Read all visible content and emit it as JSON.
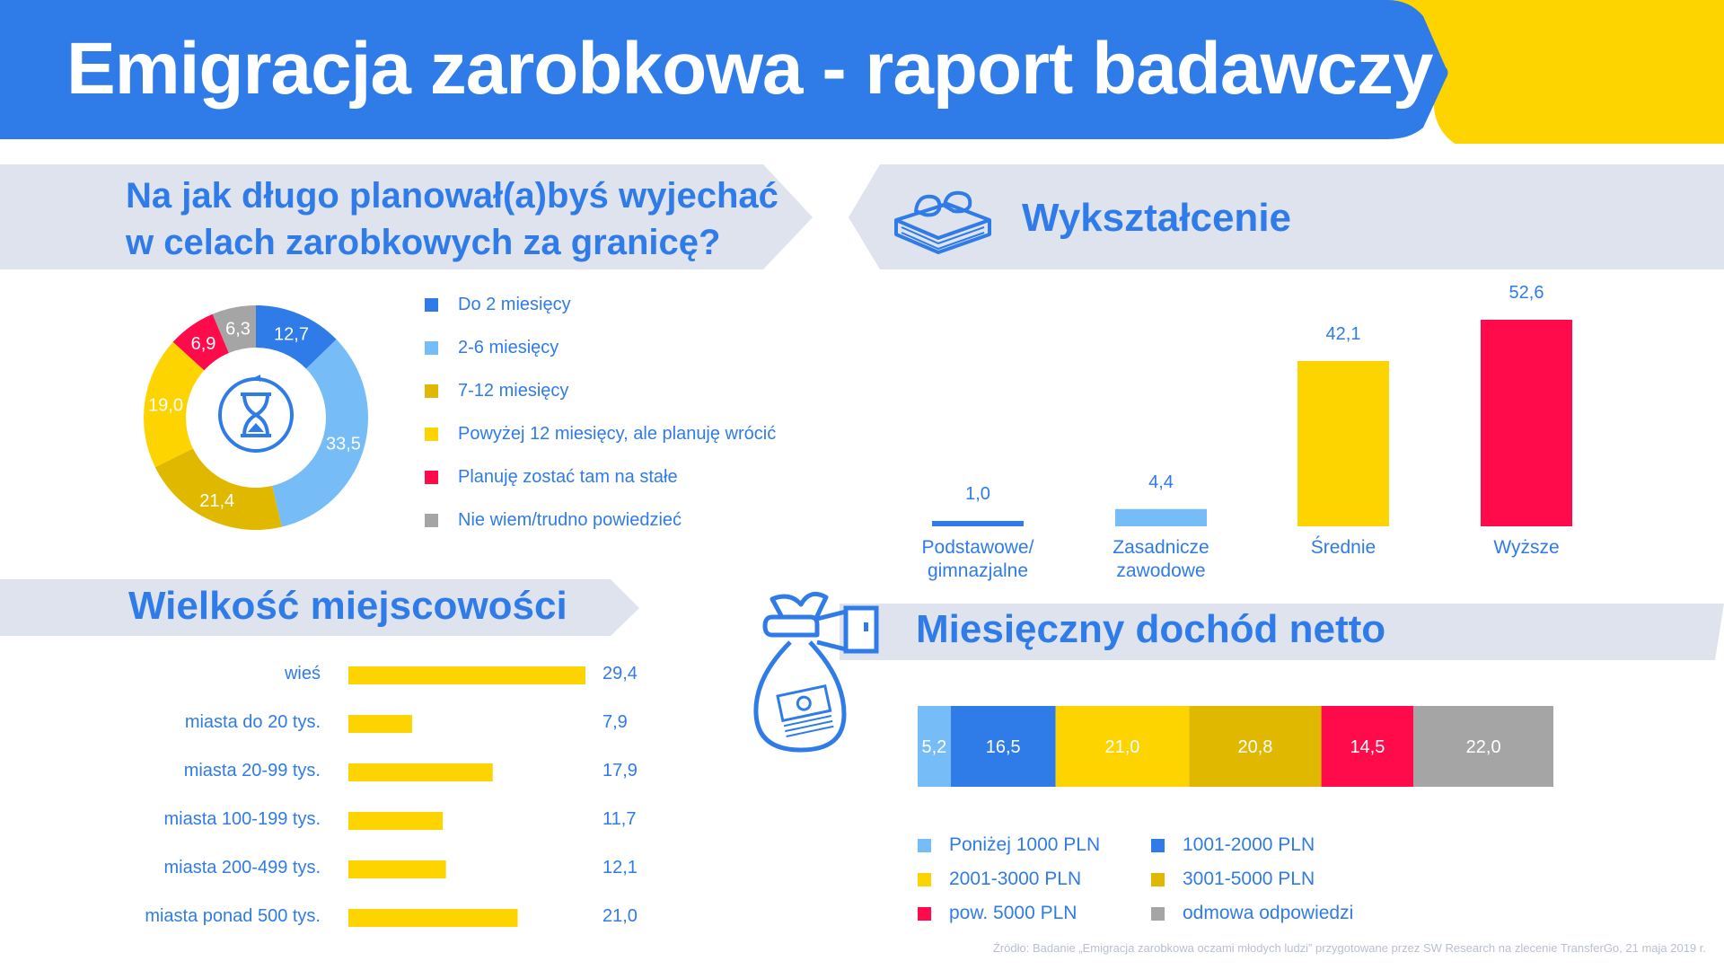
{
  "header": {
    "title": "Emigracja zarobkowa - raport badawczy"
  },
  "colors": {
    "blue": "#2f7be8",
    "light_blue": "#76bdf8",
    "dark_yellow": "#e0b800",
    "yellow": "#fed400",
    "red": "#ff0a4b",
    "gray": "#a5a5a5",
    "panel": "#dfe3ee"
  },
  "duration": {
    "title_line1": "Na jak długo planował(a)byś wyjechać",
    "title_line2": "w celach zarobkowych za granicę?",
    "icon": "hourglass-icon"
  },
  "education": {
    "title": "Wykształcenie",
    "icon": "books-glasses-icon"
  },
  "town_size": {
    "title": "Wielkość miejscowości"
  },
  "income": {
    "title": "Miesięczny dochód netto",
    "icon": "money-bag-hand-icon"
  },
  "footnote": "Źródło: Badanie „Emigracja zarobkowa oczami młodych ludzi” przygotowane przez SW Research na zlecenie TransferGo, 21 maja 2019 r.",
  "chart_data": [
    {
      "type": "pie",
      "donut": true,
      "categories": [
        "Do 2 miesięcy",
        "2-6 miesięcy",
        "7-12 miesięcy",
        "Powyżej 12 miesięcy, ale planuję wrócić",
        "Planuję zostać tam na stałe",
        "Nie wiem/trudno powiedzieć"
      ],
      "values": [
        12.7,
        33.5,
        21.4,
        19.0,
        6.9,
        6.3
      ],
      "value_labels": [
        "12,7",
        "33,5",
        "21,4",
        "19,0",
        "6,9",
        "6,3"
      ],
      "colors": [
        "#2f7be8",
        "#76bdf8",
        "#e0b800",
        "#fed400",
        "#ff0a4b",
        "#a5a5a5"
      ],
      "legend_position": "right"
    },
    {
      "type": "bar",
      "categories": [
        "Podstawowe/ gimnazjalne",
        "Zasadnicze zawodowe",
        "Średnie",
        "Wyższe"
      ],
      "values": [
        1.0,
        4.4,
        42.1,
        52.6
      ],
      "value_labels": [
        "1,0",
        "4,4",
        "42,1",
        "52,6"
      ],
      "colors": [
        "#2f7be8",
        "#76bdf8",
        "#fed400",
        "#ff0a4b"
      ],
      "ylim": [
        0,
        52.6
      ]
    },
    {
      "type": "bar",
      "orientation": "horizontal",
      "categories": [
        "wieś",
        "miasta do 20 tys.",
        "miasta 20-99 tys.",
        "miasta 100-199 tys.",
        "miasta 200-499 tys.",
        "miasta ponad 500 tys."
      ],
      "values": [
        29.4,
        7.9,
        17.9,
        11.7,
        12.1,
        21.0
      ],
      "value_labels": [
        "29,4",
        "7,9",
        "17,9",
        "11,7",
        "12,1",
        "21,0"
      ],
      "color": "#fed400",
      "xlim": [
        0,
        29.4
      ]
    },
    {
      "type": "bar",
      "stacked": true,
      "orientation": "horizontal",
      "categories": [
        "Poniżej 1000 PLN",
        "1001-2000 PLN",
        "2001-3000 PLN",
        "3001-5000 PLN",
        "pow. 5000 PLN",
        "odmowa odpowiedzi"
      ],
      "values": [
        5.2,
        16.5,
        21.0,
        20.8,
        14.5,
        22.0
      ],
      "value_labels": [
        "5,2",
        "16,5",
        "21,0",
        "20,8",
        "14,5",
        "22,0"
      ],
      "colors": [
        "#76bdf8",
        "#2f7be8",
        "#fed400",
        "#e0b800",
        "#ff0a4b",
        "#a5a5a5"
      ],
      "legend_position": "bottom"
    }
  ]
}
